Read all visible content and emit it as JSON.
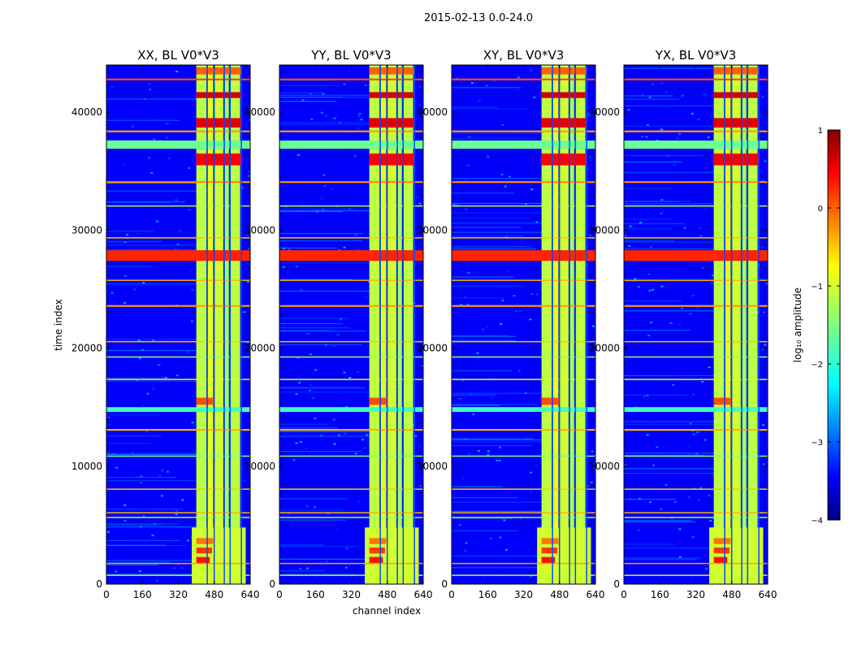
{
  "figure_title": "2015-02-13 0.0-24.0",
  "chart_data": {
    "type": "heatmap",
    "suptitle": "2015-02-13 0.0-24.0",
    "panels": [
      {
        "title": "XX, BL V0*V3",
        "polarization": "XX"
      },
      {
        "title": "YY, BL V0*V3",
        "polarization": "YY"
      },
      {
        "title": "XY, BL V0*V3",
        "polarization": "XY"
      },
      {
        "title": "YX, BL V0*V3",
        "polarization": "YX"
      }
    ],
    "xlabel": "channel index",
    "ylabel": "time index",
    "xlim": [
      0,
      640
    ],
    "ylim": [
      0,
      44000
    ],
    "xticks": [
      0,
      160,
      320,
      480,
      640
    ],
    "yticks": [
      0,
      10000,
      20000,
      30000,
      40000
    ],
    "colorbar": {
      "label": "log₁₀ amplitude",
      "vmin": -4,
      "vmax": 1,
      "ticks": [
        1,
        0,
        -1,
        -2,
        -3,
        -4
      ],
      "tick_labels": [
        "1",
        "0",
        "−1",
        "−2",
        "−3",
        "−4"
      ],
      "colormap": "jet"
    },
    "background_level": -3.4,
    "rfi_channel_bands": [
      {
        "x0": 400,
        "x1": 445,
        "level": -1.2
      },
      {
        "x0": 448,
        "x1": 475,
        "level": -1.0
      },
      {
        "x0": 480,
        "x1": 520,
        "level": -1.1
      },
      {
        "x0": 525,
        "x1": 545,
        "level": -1.3
      },
      {
        "x0": 552,
        "x1": 595,
        "level": -1.2
      }
    ],
    "rfi_time_bands": [
      {
        "t0": 27400,
        "t1": 28300,
        "level": 0.2
      },
      {
        "t0": 36900,
        "t1": 37600,
        "level": -1.6
      },
      {
        "t0": 42700,
        "t1": 42850,
        "level": 0.0
      },
      {
        "t0": 38300,
        "t1": 38450,
        "level": -0.4
      },
      {
        "t0": 34000,
        "t1": 34150,
        "level": -0.3
      },
      {
        "t0": 32000,
        "t1": 32100,
        "level": -1.2
      },
      {
        "t0": 29300,
        "t1": 29400,
        "level": -0.6
      },
      {
        "t0": 25700,
        "t1": 25800,
        "level": -0.5
      },
      {
        "t0": 23500,
        "t1": 23650,
        "level": -0.4
      },
      {
        "t0": 20500,
        "t1": 20600,
        "level": -0.6
      },
      {
        "t0": 19200,
        "t1": 19300,
        "level": -1.4
      },
      {
        "t0": 17300,
        "t1": 17400,
        "level": -1.0
      },
      {
        "t0": 14600,
        "t1": 15000,
        "level": -1.8
      },
      {
        "t0": 13000,
        "t1": 13150,
        "level": -0.5
      },
      {
        "t0": 10800,
        "t1": 10900,
        "level": -1.5
      },
      {
        "t0": 8000,
        "t1": 8100,
        "level": -0.6
      },
      {
        "t0": 6000,
        "t1": 6100,
        "level": -0.5
      },
      {
        "t0": 5600,
        "t1": 5700,
        "level": -1.3
      },
      {
        "t0": 1700,
        "t1": 1800,
        "level": -0.4
      },
      {
        "t0": 700,
        "t1": 800,
        "level": -1.2
      }
    ],
    "hot_spots": [
      {
        "x0": 400,
        "x1": 460,
        "t0": 1800,
        "t1": 2300,
        "level": 0.3
      },
      {
        "x0": 400,
        "x1": 470,
        "t0": 2600,
        "t1": 3100,
        "level": 0.1
      },
      {
        "x0": 400,
        "x1": 475,
        "t0": 3400,
        "t1": 3900,
        "level": -0.2
      },
      {
        "x0": 400,
        "x1": 480,
        "t0": 15200,
        "t1": 15800,
        "level": 0.0
      },
      {
        "x0": 400,
        "x1": 600,
        "t0": 35500,
        "t1": 36500,
        "level": 0.4
      },
      {
        "x0": 400,
        "x1": 600,
        "t0": 38700,
        "t1": 39500,
        "level": 0.5
      },
      {
        "x0": 400,
        "x1": 600,
        "t0": 41200,
        "t1": 41700,
        "level": 0.6
      },
      {
        "x0": 400,
        "x1": 600,
        "t0": 43200,
        "t1": 43800,
        "level": -0.1
      }
    ],
    "low_corner_block": {
      "x0": 380,
      "x1": 620,
      "t0": 0,
      "t1": 4800,
      "level": -1.1
    }
  }
}
